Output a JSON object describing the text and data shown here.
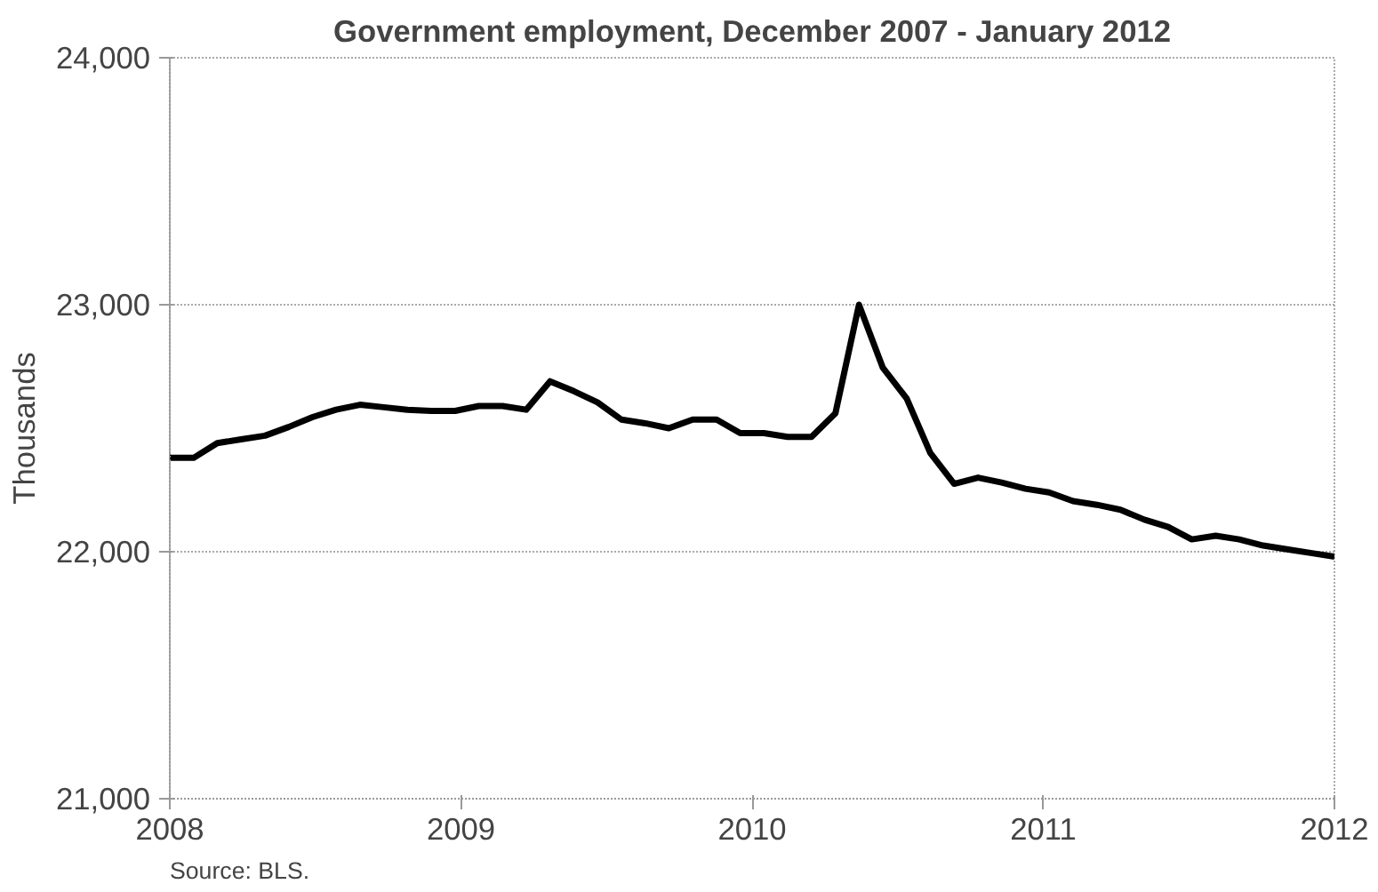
{
  "chart_data": {
    "type": "line",
    "title": "Government employment, December 2007 - January 2012",
    "ylabel": "Thousands",
    "annotations": [
      "Source: BLS."
    ],
    "x": [
      2008.0,
      2008.082,
      2008.163,
      2008.245,
      2008.327,
      2008.408,
      2008.49,
      2008.571,
      2008.653,
      2008.735,
      2008.816,
      2008.898,
      2008.98,
      2009.061,
      2009.143,
      2009.224,
      2009.306,
      2009.388,
      2009.469,
      2009.551,
      2009.633,
      2009.714,
      2009.796,
      2009.878,
      2009.959,
      2010.041,
      2010.122,
      2010.204,
      2010.286,
      2010.367,
      2010.449,
      2010.531,
      2010.612,
      2010.694,
      2010.776,
      2010.857,
      2010.939,
      2011.02,
      2011.102,
      2011.184,
      2011.265,
      2011.347,
      2011.429,
      2011.51,
      2011.592,
      2011.673,
      2011.755,
      2011.837,
      2011.918,
      2012.0
    ],
    "series": [
      {
        "color": "#000000",
        "values": [
          22380,
          22380,
          22440,
          22455,
          22470,
          22505,
          22545,
          22575,
          22595,
          22585,
          22575,
          22570,
          22570,
          22590,
          22590,
          22575,
          22690,
          22650,
          22605,
          22535,
          22520,
          22500,
          22535,
          22535,
          22480,
          22480,
          22465,
          22465,
          22560,
          23000,
          22745,
          22620,
          22400,
          22275,
          22300,
          22280,
          22255,
          22240,
          22205,
          22190,
          22170,
          22130,
          22100,
          22050,
          22065,
          22050,
          22025,
          22010,
          21995,
          21980
        ]
      }
    ],
    "xlim": [
      2008,
      2012
    ],
    "xticks": [
      2008,
      2009,
      2010,
      2011,
      2012
    ],
    "ylim": [
      21000,
      24000
    ],
    "yticks": [
      {
        "value": 21000,
        "label": "21,000"
      },
      {
        "value": 22000,
        "label": "22,000"
      },
      {
        "value": 23000,
        "label": "23,000"
      },
      {
        "value": 24000,
        "label": "24,000"
      }
    ],
    "grid": "y",
    "line_style": "solid"
  }
}
